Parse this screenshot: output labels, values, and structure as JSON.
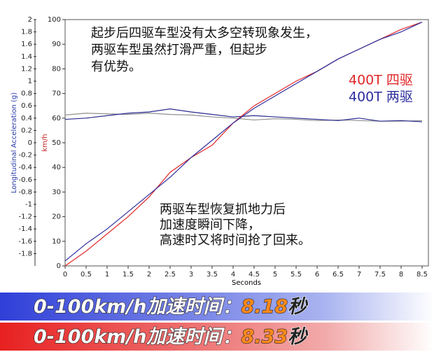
{
  "chart_data": {
    "type": "line",
    "xlabel": "Seconds",
    "ylabel": "Longitudinal Acceleration (g)",
    "y2label": "km/h",
    "xlim": [
      0,
      8.65
    ],
    "xticks": [
      0,
      0.5,
      1,
      1.5,
      2,
      2.5,
      3,
      3.5,
      4,
      4.5,
      5,
      5.5,
      6,
      6.5,
      7,
      7.5,
      8,
      8.5
    ],
    "ylim": [
      -2,
      2
    ],
    "yticks": [
      2,
      1.8,
      1.6,
      1.4,
      1.2,
      1,
      0.8,
      0.6,
      0.4,
      0.2,
      0,
      -0.2,
      -0.4,
      -0.6,
      -0.8,
      -1,
      -1.2,
      -1.4,
      -1.6,
      -1.8
    ],
    "y2lim": [
      0,
      100
    ],
    "y2ticks": [
      0,
      10,
      20,
      30,
      40,
      50,
      60,
      70,
      80,
      90,
      100
    ],
    "x": [
      0,
      0.5,
      1,
      1.5,
      2,
      2.5,
      3,
      3.5,
      4,
      4.5,
      5,
      5.5,
      6,
      6.5,
      7,
      7.5,
      8,
      8.5
    ],
    "series": [
      {
        "color": "#909090",
        "values": [
          0.45,
          0.48,
          0.47,
          0.46,
          0.48,
          0.46,
          0.45,
          0.42,
          0.4,
          0.37,
          0.39,
          0.38,
          0.36,
          0.37,
          0.36,
          0.35,
          0.35,
          0.36
        ]
      },
      {
        "color": "#2a2a90",
        "values": [
          0.38,
          0.4,
          0.44,
          0.48,
          0.5,
          0.55,
          0.5,
          0.46,
          0.42,
          0.44,
          0.42,
          0.4,
          0.38,
          0.36,
          0.4,
          0.35,
          0.36,
          0.34
        ]
      },
      {
        "name": "400T 四驱",
        "color": "#e02828",
        "axis": "y2",
        "values": [
          0,
          6,
          13,
          20,
          28,
          38,
          44,
          49,
          58,
          65,
          70,
          75,
          79,
          84,
          88,
          92,
          96,
          99
        ]
      },
      {
        "name": "400T 两驱",
        "color": "#2e2e9e",
        "axis": "y2",
        "values": [
          2,
          9,
          15,
          22,
          29,
          36,
          44,
          51,
          58,
          64,
          69,
          74,
          79,
          84,
          88,
          92,
          95,
          99
        ]
      }
    ],
    "annotations": [
      [
        "起步后四驱车型没有太多空转现象发生，",
        "两驱车型虽然打滑严重，但起步",
        "有优势。"
      ],
      [
        "两驱车型恢复抓地力后",
        "加速度瞬间下降，",
        "高速时又将时间抢了回来。"
      ]
    ],
    "banners": [
      {
        "label": "0-100km/h加速时间：",
        "value": 8.18,
        "unit": "秒"
      },
      {
        "label": "0-100km/h加速时间：",
        "value": 8.33,
        "unit": "秒"
      }
    ]
  }
}
